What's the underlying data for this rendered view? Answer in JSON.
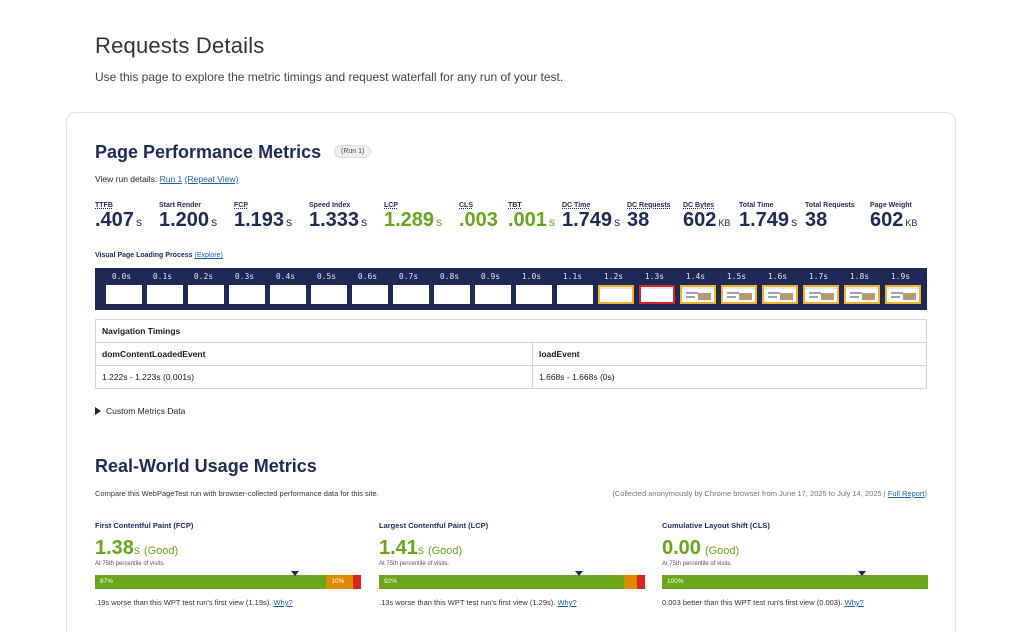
{
  "page": {
    "title": "Requests Details",
    "subtitle": "Use this page to explore the metric timings and request waterfall for any run of your test."
  },
  "performance": {
    "title": "Page Performance Metrics",
    "run_badge": "(Run 1)",
    "view_run_prefix": "View run details:",
    "run_link": "Run 1",
    "repeat_view_link": "(Repeat View)",
    "metrics": [
      {
        "label": "TTFB",
        "value": ".407",
        "unit": "s",
        "good": false,
        "dotted": true
      },
      {
        "label": "Start Render",
        "value": "1.200",
        "unit": "s",
        "good": false,
        "dotted": false
      },
      {
        "label": "FCP",
        "value": "1.193",
        "unit": "s",
        "good": false,
        "dotted": true
      },
      {
        "label": "Speed Index",
        "value": "1.333",
        "unit": "s",
        "good": false,
        "dotted": false
      },
      {
        "label": "LCP",
        "value": "1.289",
        "unit": "s",
        "good": true,
        "dotted": true
      },
      {
        "label": "CLS",
        "value": ".003",
        "unit": "",
        "good": true,
        "dotted": true
      },
      {
        "label": "TBT",
        "value": ".001",
        "unit": "s",
        "good": true,
        "dotted": true
      },
      {
        "label": "DC Time",
        "value": "1.749",
        "unit": "s",
        "good": false,
        "dotted": true
      },
      {
        "label": "DC Requests",
        "value": "38",
        "unit": "",
        "good": false,
        "dotted": true
      },
      {
        "label": "DC Bytes",
        "value": "602",
        "unit": "KB",
        "good": false,
        "dotted": true
      },
      {
        "label": "Total Time",
        "value": "1.749",
        "unit": "s",
        "good": false,
        "dotted": false
      },
      {
        "label": "Total Requests",
        "value": "38",
        "unit": "",
        "good": false,
        "dotted": false
      },
      {
        "label": "Page Weight",
        "value": "602",
        "unit": "KB",
        "good": false,
        "dotted": false
      }
    ],
    "visual_label": "Visual Page Loading Process",
    "explore_link": "(Explore)",
    "filmstrip": [
      {
        "time": "0.0s",
        "state": "blank"
      },
      {
        "time": "0.1s",
        "state": "blank"
      },
      {
        "time": "0.2s",
        "state": "blank"
      },
      {
        "time": "0.3s",
        "state": "blank"
      },
      {
        "time": "0.4s",
        "state": "blank"
      },
      {
        "time": "0.5s",
        "state": "blank"
      },
      {
        "time": "0.6s",
        "state": "blank"
      },
      {
        "time": "0.7s",
        "state": "blank"
      },
      {
        "time": "0.8s",
        "state": "blank"
      },
      {
        "time": "0.9s",
        "state": "blank"
      },
      {
        "time": "1.0s",
        "state": "blank"
      },
      {
        "time": "1.1s",
        "state": "blank"
      },
      {
        "time": "1.2s",
        "state": "changed-partial"
      },
      {
        "time": "1.3s",
        "state": "lcp-partial"
      },
      {
        "time": "1.4s",
        "state": "changed-full"
      },
      {
        "time": "1.5s",
        "state": "changed-full"
      },
      {
        "time": "1.6s",
        "state": "changed-full"
      },
      {
        "time": "1.7s",
        "state": "changed-full"
      },
      {
        "time": "1.8s",
        "state": "changed-full"
      },
      {
        "time": "1.9s",
        "state": "changed-full"
      }
    ],
    "nav_timings": {
      "header": "Navigation Timings",
      "col1": "domContentLoadedEvent",
      "col2": "loadEvent",
      "val1": "1.222s - 1.223s (0.001s)",
      "val2": "1.668s - 1.668s (0s)"
    },
    "custom_metrics": "Custom Metrics Data"
  },
  "real_world": {
    "title": "Real-World Usage Metrics",
    "description": "Compare this WebPageTest run with browser-collected performance data for this site.",
    "collected": "(Collected anonymously by Chrome browser from June 17, 2025 to July 14, 2025 | ",
    "full_report": "Full Report",
    "collected_close": ")",
    "cards": [
      {
        "label": "First Contentful Paint (FCP)",
        "value": "1.38",
        "unit": "s",
        "rating": "(Good)",
        "percentile": "At 75th percentile of visits.",
        "good_pct": 87,
        "mid_pct": 10,
        "bad_pct": 3,
        "good_label": "87%",
        "mid_label": "10%",
        "marker_pct": 75,
        "compare": ".19s worse than this WPT test run's first view (1.19s).",
        "why": "Why?"
      },
      {
        "label": "Largest Contentful Paint (LCP)",
        "value": "1.41",
        "unit": "s",
        "rating": "(Good)",
        "percentile": "At 75th percentile of visits.",
        "good_pct": 92,
        "mid_pct": 5,
        "bad_pct": 3,
        "good_label": "92%",
        "mid_label": "",
        "marker_pct": 75,
        "compare": ".13s worse than this WPT test run's first view (1.29s).",
        "why": "Why?"
      },
      {
        "label": "Cumulative Layout Shift (CLS)",
        "value": "0.00",
        "unit": "",
        "rating": "(Good)",
        "percentile": "At 75th percentile of visits.",
        "good_pct": 100,
        "mid_pct": 0,
        "bad_pct": 0,
        "good_label": "100%",
        "mid_label": "",
        "marker_pct": 75,
        "compare": "0.003 better than this WPT test run's first view (0.003).",
        "why": "Why?"
      }
    ]
  }
}
